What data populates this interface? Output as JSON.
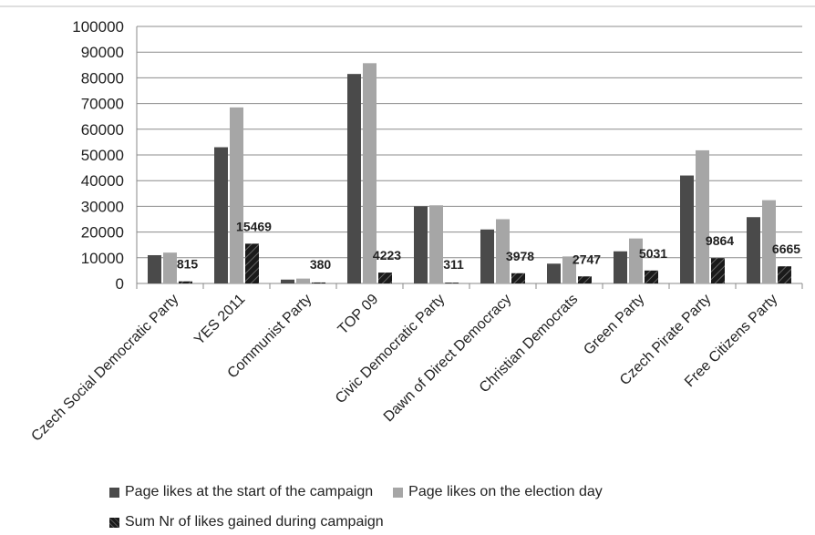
{
  "chart_data": {
    "type": "bar",
    "categories": [
      "Czech Social Democratic Party",
      "YES 2011",
      "Communist Party",
      "TOP 09",
      "Civic Democratic Party",
      "Dawn of Direct Democracy",
      "Christian Democrats",
      "Green Party",
      "Czech Pirate Party",
      "Free Citizens Party"
    ],
    "series": [
      {
        "name": "Page likes at the start of the campaign",
        "color": "#4a4a4a",
        "values": [
          11000,
          53000,
          1500,
          81500,
          30000,
          21000,
          7700,
          12500,
          42000,
          25800
        ]
      },
      {
        "name": "Page likes on the election day",
        "color": "#a6a6a6",
        "values": [
          12000,
          68500,
          1900,
          85700,
          30400,
          25000,
          10500,
          17500,
          51800,
          32400
        ]
      },
      {
        "name": "Sum Nr of likes gained during campaign",
        "color": "#1a1a1a",
        "pattern": "diagonal-stripes",
        "values": [
          815,
          15469,
          380,
          4223,
          311,
          3978,
          2747,
          5031,
          9864,
          6665
        ]
      }
    ],
    "data_labels": [
      "815",
      "15469",
      "380",
      "4223",
      "311",
      "3978",
      "2747",
      "5031",
      "9864",
      "6665"
    ],
    "yticks": [
      "0",
      "10000",
      "20000",
      "30000",
      "40000",
      "50000",
      "60000",
      "70000",
      "80000",
      "90000",
      "100000"
    ],
    "ylim": [
      0,
      100000
    ],
    "title": "",
    "xlabel": "",
    "ylabel": "",
    "grid": true,
    "legend_position": "bottom"
  }
}
